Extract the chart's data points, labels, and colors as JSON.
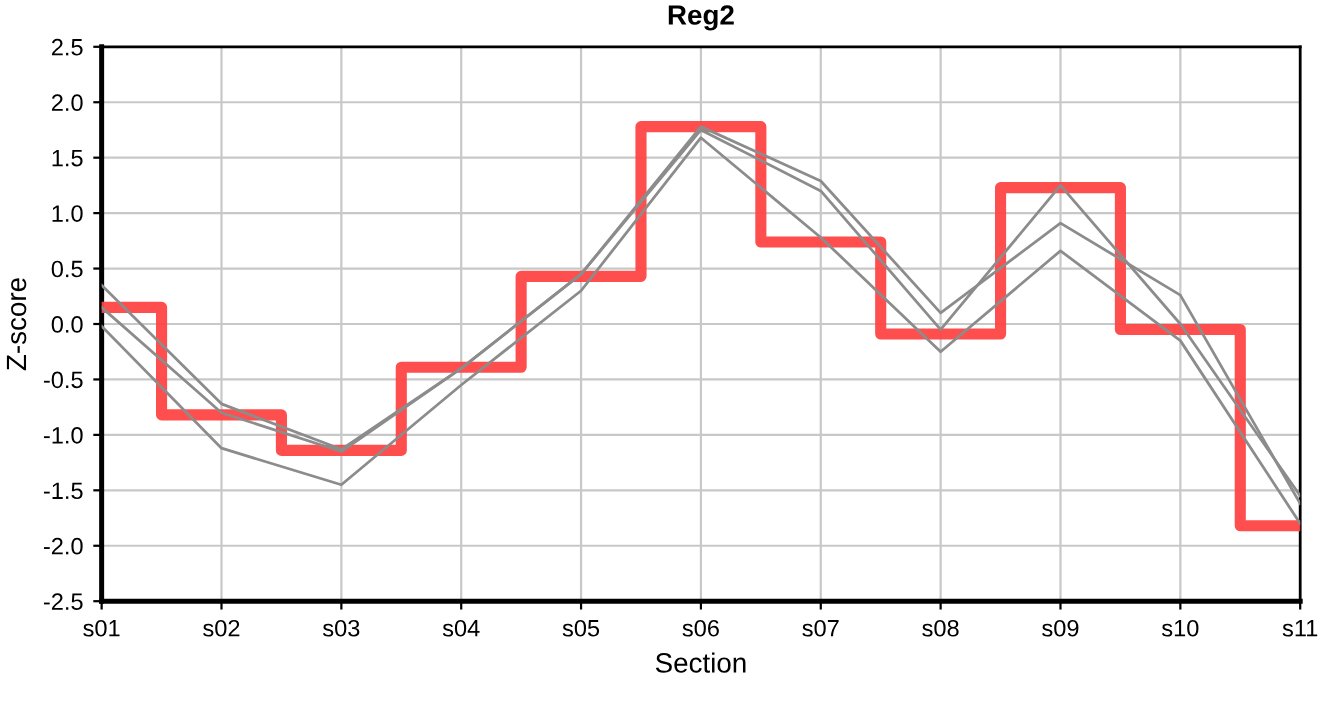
{
  "chart_data": {
    "type": "line",
    "title": "Reg2",
    "xlabel": "Section",
    "ylabel": "Z-score",
    "categories": [
      "s01",
      "s02",
      "s03",
      "s04",
      "s05",
      "s06",
      "s07",
      "s08",
      "s09",
      "s10",
      "s11"
    ],
    "series": [
      {
        "color": "#8c8c8c",
        "values": [
          0.35,
          -0.72,
          -1.13,
          -0.4,
          0.45,
          1.75,
          1.2,
          -0.05,
          1.25,
          0.0,
          -1.55
        ]
      },
      {
        "color": "#8c8c8c",
        "values": [
          0.15,
          -0.8,
          -1.15,
          -0.4,
          0.45,
          1.78,
          1.29,
          0.1,
          0.91,
          0.26,
          -1.62
        ]
      },
      {
        "color": "#8c8c8c",
        "values": [
          -0.02,
          -1.12,
          -1.45,
          -0.55,
          0.3,
          1.68,
          0.78,
          -0.25,
          0.66,
          -0.15,
          -1.8
        ]
      },
      {
        "type": "step",
        "color": "#ff4444",
        "values": [
          0.15,
          -0.82,
          -1.14,
          -0.39,
          0.43,
          1.78,
          0.74,
          -0.09,
          1.23,
          -0.05,
          -1.82
        ]
      }
    ],
    "ylim": [
      -2.5,
      2.5
    ],
    "yticks": [
      {
        "value": 2.5,
        "label": "2.5"
      },
      {
        "value": 2.0,
        "label": "2.0"
      },
      {
        "value": 1.5,
        "label": "1.5"
      },
      {
        "value": 1.0,
        "label": "1.0"
      },
      {
        "value": 0.5,
        "label": "0.5"
      },
      {
        "value": 0.0,
        "label": "0.0"
      },
      {
        "value": -0.5,
        "label": "-0.5"
      },
      {
        "value": -1.0,
        "label": "-1.0"
      },
      {
        "value": -1.5,
        "label": "-1.5"
      },
      {
        "value": -2.0,
        "label": "-2.0"
      },
      {
        "value": -2.5,
        "label": "-2.5"
      }
    ],
    "grid": true
  }
}
